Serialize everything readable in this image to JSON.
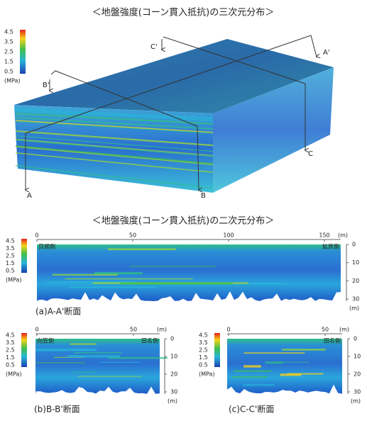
{
  "title_3d": "＜地盤強度(コーン貫入抵抗)の三次元分布＞",
  "title_2d": "＜地盤強度(コーン貫入抵抗)の二次元分布＞",
  "sections": {
    "A": "A",
    "A_prime": "A'",
    "B": "B",
    "B_prime": "B'",
    "C": "C",
    "C_prime": "C'"
  },
  "colorbar": {
    "ticks": [
      "4.5",
      "3.5",
      "2.5",
      "1.5",
      "0.5"
    ],
    "unit": "(MPa)"
  },
  "panels": [
    {
      "caption": "(a)A-A'断面",
      "left_label": "貝錫側",
      "right_label": "鉱質側",
      "xticks": [
        "0",
        "50",
        "100",
        "150"
      ],
      "x_unit": "(m)",
      "yticks": [
        "0",
        "10",
        "20",
        "30"
      ],
      "y_unit": "(m)"
    },
    {
      "caption": "(b)B-B'断面",
      "left_label": "向笠側",
      "right_label": "田名側",
      "xticks": [
        "0",
        "50"
      ],
      "x_unit": "(m)",
      "yticks": [
        "0",
        "10",
        "20",
        "30"
      ],
      "y_unit": "(m)"
    },
    {
      "caption": "(c)C-C'断面",
      "right_label": "田名側",
      "xticks": [
        "0",
        "50"
      ],
      "x_unit": "(m)",
      "yticks": [
        "0",
        "10",
        "20",
        "30"
      ],
      "y_unit": "(m)"
    }
  ]
}
